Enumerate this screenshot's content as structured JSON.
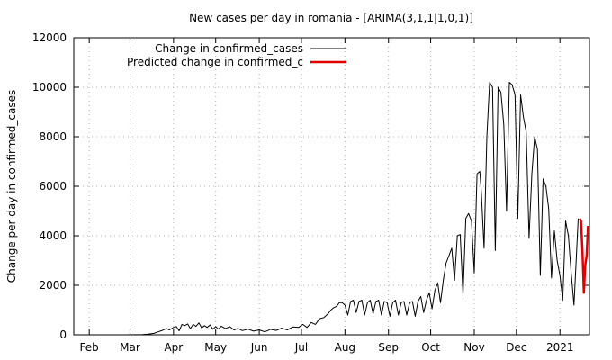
{
  "chart_data": {
    "type": "line",
    "title": "New cases per day in romania -  [ARIMA(3,1,1|1,0,1)]",
    "xlabel": "",
    "ylabel": "Change per day in confirmed_cases",
    "xlim": [
      "2020-01-21",
      "2021-01-22"
    ],
    "ylim": [
      0,
      12000
    ],
    "grid": true,
    "legend_position": "top-left",
    "x_ticks": [
      {
        "label": "Feb",
        "date": "2020-02-01"
      },
      {
        "label": "Mar",
        "date": "2020-03-01"
      },
      {
        "label": "Apr",
        "date": "2020-04-01"
      },
      {
        "label": "May",
        "date": "2020-05-01"
      },
      {
        "label": "Jun",
        "date": "2020-06-01"
      },
      {
        "label": "Jul",
        "date": "2020-07-01"
      },
      {
        "label": "Aug",
        "date": "2020-08-01"
      },
      {
        "label": "Sep",
        "date": "2020-09-01"
      },
      {
        "label": "Oct",
        "date": "2020-10-01"
      },
      {
        "label": "Nov",
        "date": "2020-11-01"
      },
      {
        "label": "Dec",
        "date": "2020-12-01"
      },
      {
        "label": "2021",
        "date": "2021-01-01"
      }
    ],
    "y_ticks": [
      0,
      2000,
      4000,
      6000,
      8000,
      10000,
      12000
    ],
    "series": [
      {
        "name": "Change in confirmed_cases",
        "color": "#000000",
        "points": [
          [
            "2020-02-26",
            0
          ],
          [
            "2020-03-05",
            5
          ],
          [
            "2020-03-10",
            10
          ],
          [
            "2020-03-14",
            30
          ],
          [
            "2020-03-18",
            60
          ],
          [
            "2020-03-21",
            120
          ],
          [
            "2020-03-24",
            180
          ],
          [
            "2020-03-27",
            260
          ],
          [
            "2020-03-29",
            200
          ],
          [
            "2020-04-01",
            300
          ],
          [
            "2020-04-03",
            330
          ],
          [
            "2020-04-05",
            160
          ],
          [
            "2020-04-07",
            420
          ],
          [
            "2020-04-09",
            370
          ],
          [
            "2020-04-11",
            440
          ],
          [
            "2020-04-13",
            250
          ],
          [
            "2020-04-15",
            420
          ],
          [
            "2020-04-17",
            340
          ],
          [
            "2020-04-19",
            480
          ],
          [
            "2020-04-21",
            280
          ],
          [
            "2020-04-23",
            370
          ],
          [
            "2020-04-25",
            300
          ],
          [
            "2020-04-27",
            400
          ],
          [
            "2020-04-29",
            230
          ],
          [
            "2020-05-01",
            330
          ],
          [
            "2020-05-03",
            230
          ],
          [
            "2020-05-05",
            350
          ],
          [
            "2020-05-08",
            250
          ],
          [
            "2020-05-11",
            330
          ],
          [
            "2020-05-14",
            200
          ],
          [
            "2020-05-17",
            260
          ],
          [
            "2020-05-20",
            170
          ],
          [
            "2020-05-24",
            230
          ],
          [
            "2020-05-28",
            150
          ],
          [
            "2020-06-01",
            200
          ],
          [
            "2020-06-05",
            120
          ],
          [
            "2020-06-09",
            220
          ],
          [
            "2020-06-13",
            180
          ],
          [
            "2020-06-17",
            270
          ],
          [
            "2020-06-21",
            200
          ],
          [
            "2020-06-25",
            320
          ],
          [
            "2020-06-29",
            300
          ],
          [
            "2020-07-02",
            420
          ],
          [
            "2020-07-05",
            300
          ],
          [
            "2020-07-08",
            500
          ],
          [
            "2020-07-11",
            420
          ],
          [
            "2020-07-14",
            650
          ],
          [
            "2020-07-17",
            700
          ],
          [
            "2020-07-20",
            850
          ],
          [
            "2020-07-22",
            1000
          ],
          [
            "2020-07-24",
            1100
          ],
          [
            "2020-07-26",
            1150
          ],
          [
            "2020-07-28",
            1300
          ],
          [
            "2020-07-30",
            1300
          ],
          [
            "2020-08-01",
            1200
          ],
          [
            "2020-08-03",
            800
          ],
          [
            "2020-08-05",
            1350
          ],
          [
            "2020-08-07",
            1400
          ],
          [
            "2020-08-09",
            900
          ],
          [
            "2020-08-11",
            1350
          ],
          [
            "2020-08-13",
            1400
          ],
          [
            "2020-08-15",
            800
          ],
          [
            "2020-08-17",
            1300
          ],
          [
            "2020-08-19",
            1400
          ],
          [
            "2020-08-21",
            850
          ],
          [
            "2020-08-23",
            1350
          ],
          [
            "2020-08-25",
            1400
          ],
          [
            "2020-08-27",
            800
          ],
          [
            "2020-08-29",
            1350
          ],
          [
            "2020-08-31",
            1300
          ],
          [
            "2020-09-02",
            750
          ],
          [
            "2020-09-04",
            1300
          ],
          [
            "2020-09-06",
            1400
          ],
          [
            "2020-09-08",
            800
          ],
          [
            "2020-09-10",
            1300
          ],
          [
            "2020-09-12",
            1350
          ],
          [
            "2020-09-14",
            800
          ],
          [
            "2020-09-16",
            1300
          ],
          [
            "2020-09-18",
            1350
          ],
          [
            "2020-09-20",
            750
          ],
          [
            "2020-09-22",
            1350
          ],
          [
            "2020-09-24",
            1550
          ],
          [
            "2020-09-26",
            900
          ],
          [
            "2020-09-28",
            1400
          ],
          [
            "2020-09-30",
            1700
          ],
          [
            "2020-10-02",
            1050
          ],
          [
            "2020-10-04",
            1800
          ],
          [
            "2020-10-06",
            2100
          ],
          [
            "2020-10-08",
            1300
          ],
          [
            "2020-10-10",
            2200
          ],
          [
            "2020-10-12",
            2900
          ],
          [
            "2020-10-14",
            3200
          ],
          [
            "2020-10-16",
            3500
          ],
          [
            "2020-10-18",
            2200
          ],
          [
            "2020-10-20",
            4000
          ],
          [
            "2020-10-22",
            4050
          ],
          [
            "2020-10-24",
            1600
          ],
          [
            "2020-10-26",
            4700
          ],
          [
            "2020-10-28",
            4900
          ],
          [
            "2020-10-30",
            4600
          ],
          [
            "2020-11-01",
            2500
          ],
          [
            "2020-11-03",
            6500
          ],
          [
            "2020-11-05",
            6600
          ],
          [
            "2020-11-06",
            5800
          ],
          [
            "2020-11-08",
            3500
          ],
          [
            "2020-11-10",
            8000
          ],
          [
            "2020-11-12",
            10200
          ],
          [
            "2020-11-14",
            10000
          ],
          [
            "2020-11-16",
            3400
          ],
          [
            "2020-11-18",
            10000
          ],
          [
            "2020-11-20",
            9800
          ],
          [
            "2020-11-22",
            8500
          ],
          [
            "2020-11-24",
            5000
          ],
          [
            "2020-11-26",
            10200
          ],
          [
            "2020-11-28",
            10100
          ],
          [
            "2020-11-30",
            9700
          ],
          [
            "2020-12-02",
            4700
          ],
          [
            "2020-12-04",
            9700
          ],
          [
            "2020-12-06",
            8800
          ],
          [
            "2020-12-08",
            8200
          ],
          [
            "2020-12-10",
            3900
          ],
          [
            "2020-12-12",
            6500
          ],
          [
            "2020-12-14",
            8000
          ],
          [
            "2020-12-16",
            7500
          ],
          [
            "2020-12-18",
            2400
          ],
          [
            "2020-12-20",
            6300
          ],
          [
            "2020-12-22",
            6000
          ],
          [
            "2020-12-24",
            5100
          ],
          [
            "2020-12-26",
            2300
          ],
          [
            "2020-12-28",
            4200
          ],
          [
            "2020-12-30",
            3000
          ],
          [
            "2021-01-01",
            2400
          ],
          [
            "2021-01-03",
            1400
          ],
          [
            "2021-01-05",
            4600
          ],
          [
            "2021-01-07",
            4000
          ],
          [
            "2021-01-09",
            2500
          ],
          [
            "2021-01-11",
            1200
          ],
          [
            "2021-01-13",
            3500
          ],
          [
            "2021-01-14",
            4700
          ]
        ]
      },
      {
        "name": "Predicted change in confirmed_c",
        "color": "#e00000",
        "points": [
          [
            "2021-01-15",
            4700
          ],
          [
            "2021-01-16",
            4600
          ],
          [
            "2021-01-17",
            3400
          ],
          [
            "2021-01-18",
            1700
          ],
          [
            "2021-01-19",
            2800
          ],
          [
            "2021-01-20",
            3200
          ],
          [
            "2021-01-21",
            4400
          ]
        ]
      }
    ]
  }
}
